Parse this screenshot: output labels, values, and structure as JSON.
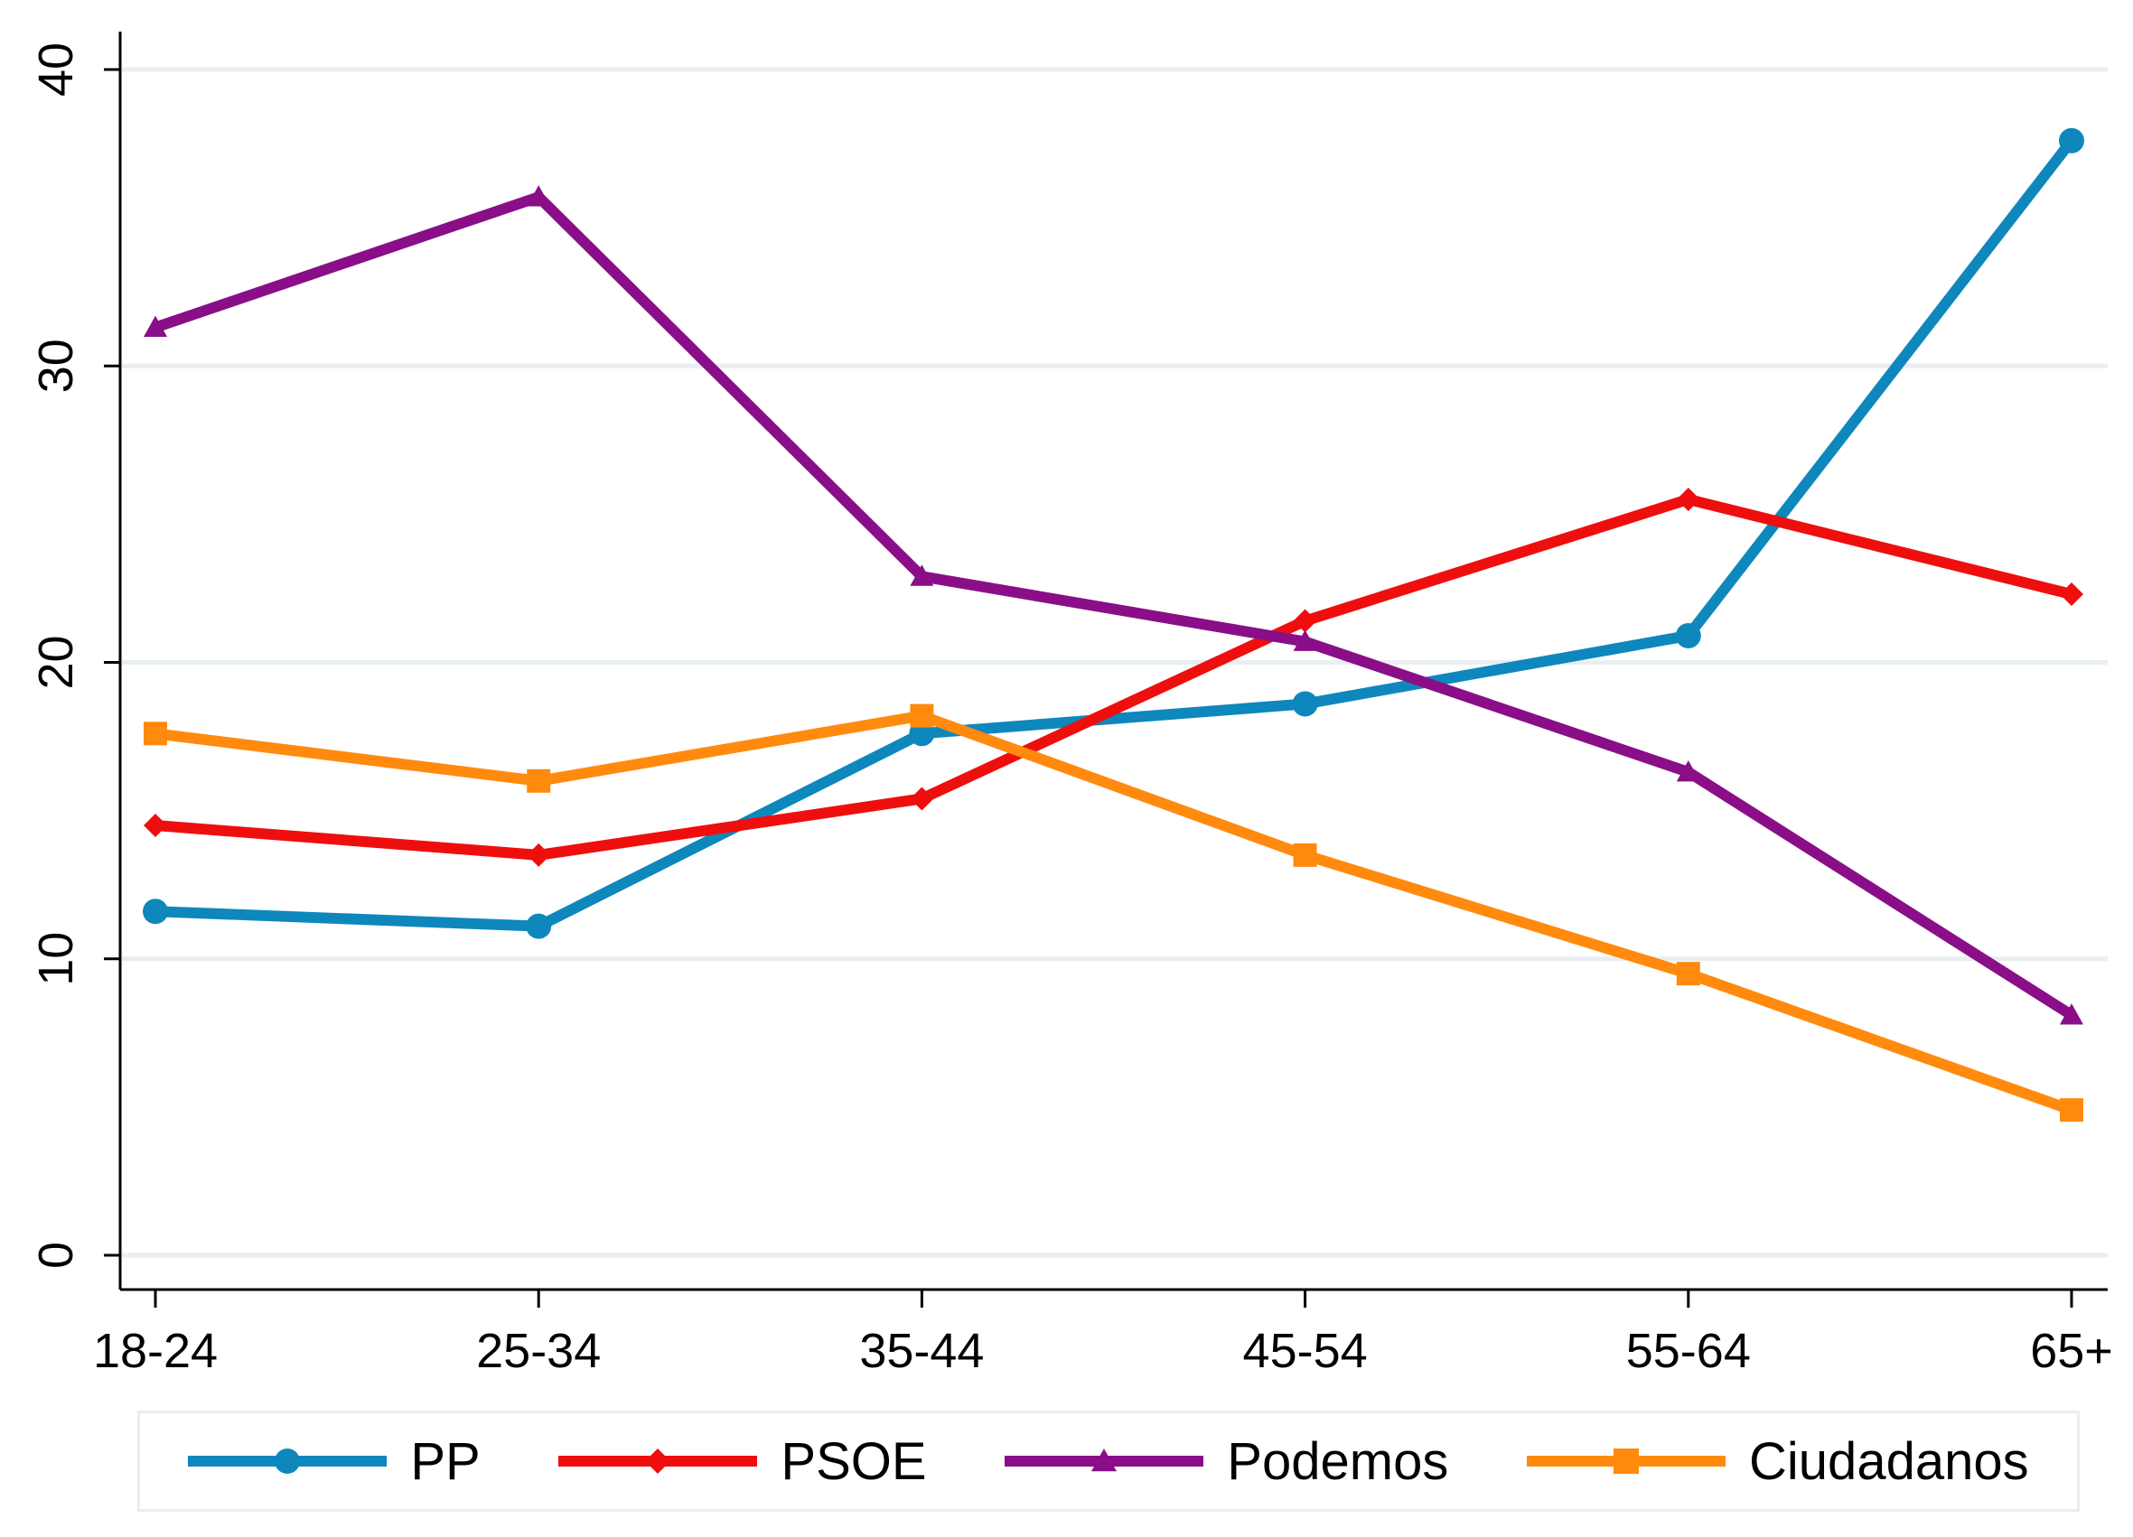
{
  "chart_data": {
    "type": "line",
    "title": "",
    "xlabel": "",
    "ylabel": "",
    "categories": [
      "18-24",
      "25-34",
      "35-44",
      "45-54",
      "55-64",
      "65+"
    ],
    "ylim": [
      0,
      40
    ],
    "yticks": [
      0,
      10,
      20,
      30,
      40
    ],
    "grid": true,
    "legend_position": "bottom",
    "series": [
      {
        "name": "PP",
        "color": "#0e87bd",
        "marker": "circle",
        "values": [
          11.6,
          11.1,
          17.6,
          18.6,
          20.9,
          37.6
        ]
      },
      {
        "name": "PSOE",
        "color": "#ef0e0e",
        "marker": "diamond",
        "values": [
          14.5,
          13.5,
          15.4,
          21.4,
          25.5,
          22.3
        ]
      },
      {
        "name": "Podemos",
        "color": "#8a0e88",
        "marker": "triangle",
        "values": [
          31.3,
          35.7,
          22.9,
          20.7,
          16.3,
          8.1
        ]
      },
      {
        "name": "Ciudadanos",
        "color": "#ff8a0e",
        "marker": "square",
        "values": [
          17.6,
          16.0,
          18.2,
          13.5,
          9.5,
          4.9
        ]
      }
    ]
  }
}
